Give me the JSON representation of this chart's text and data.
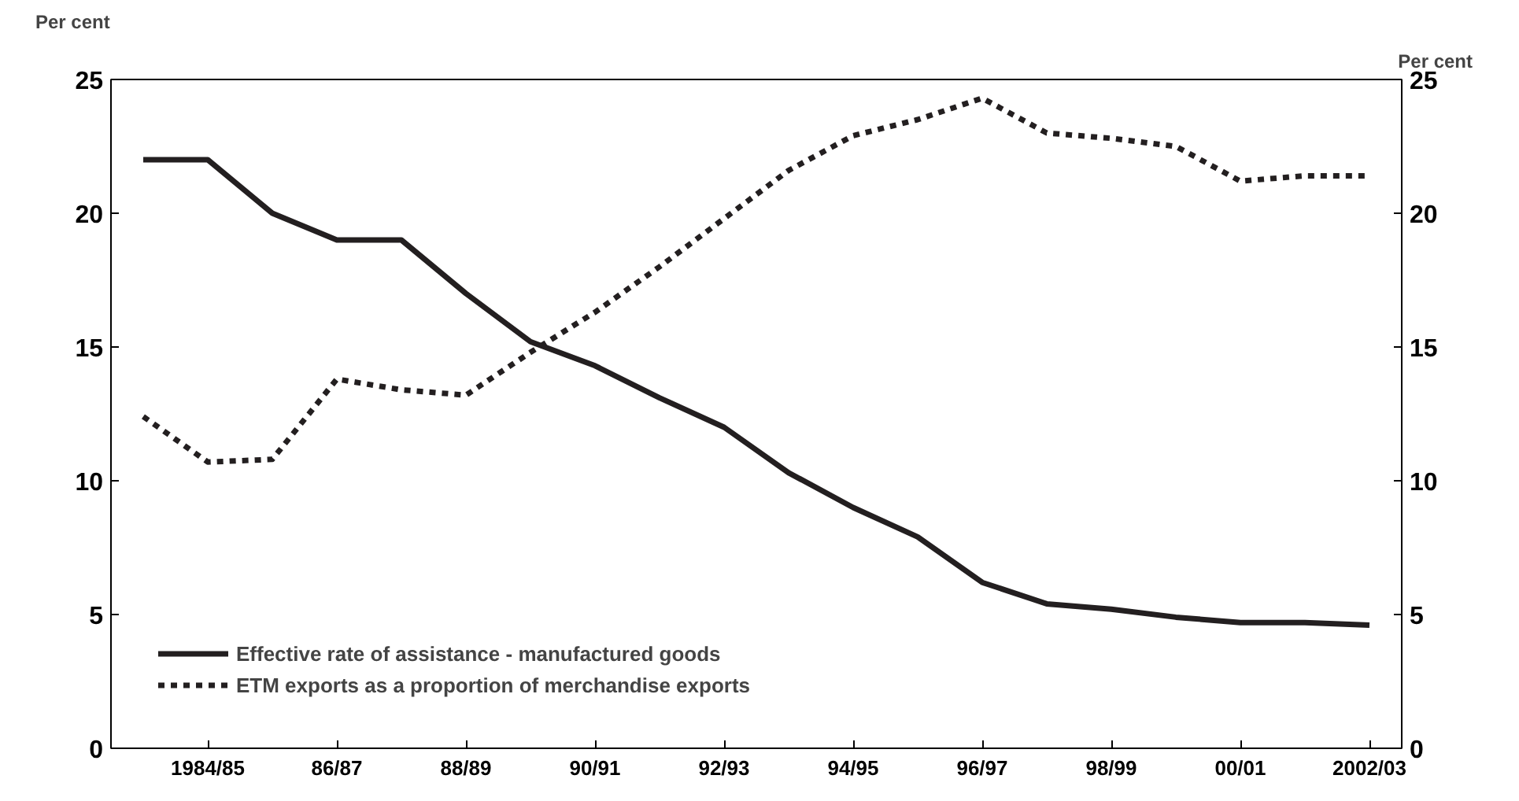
{
  "chart_data": {
    "type": "line",
    "categories": [
      null,
      "1984/85",
      null,
      "86/87",
      null,
      "88/89",
      null,
      "90/91",
      null,
      "92/93",
      null,
      "94/95",
      null,
      "96/97",
      null,
      "98/99",
      null,
      "00/01",
      null,
      "2002/03"
    ],
    "ylabel": "Per cent",
    "y2label": "Per cent",
    "ylim": [
      0,
      25
    ],
    "yticks": [
      0,
      5,
      10,
      15,
      20,
      25
    ],
    "y2lim": [
      0,
      25
    ],
    "y2ticks": [
      0,
      5,
      10,
      15,
      20,
      25
    ],
    "grid": false,
    "legend": "bottom left",
    "series": [
      {
        "name": "Effective rate of assistance - manufactured goods",
        "color": "#231f20",
        "line_style": "solid",
        "values": [
          22,
          22,
          20,
          19,
          19,
          17,
          15.2,
          14.3,
          13.1,
          12.0,
          10.3,
          9.0,
          7.9,
          6.2,
          5.4,
          5.2,
          4.9,
          4.7,
          4.7,
          4.6
        ]
      },
      {
        "name": "ETM exports as a proportion of merchandise exports",
        "color": "#231f20",
        "line_style": "dashed",
        "values": [
          12.4,
          10.7,
          10.8,
          13.8,
          13.4,
          13.2,
          14.8,
          16.3,
          18.0,
          19.8,
          21.6,
          22.9,
          23.5,
          24.3,
          23.0,
          22.8,
          22.5,
          21.2,
          21.4,
          21.4
        ]
      }
    ]
  }
}
